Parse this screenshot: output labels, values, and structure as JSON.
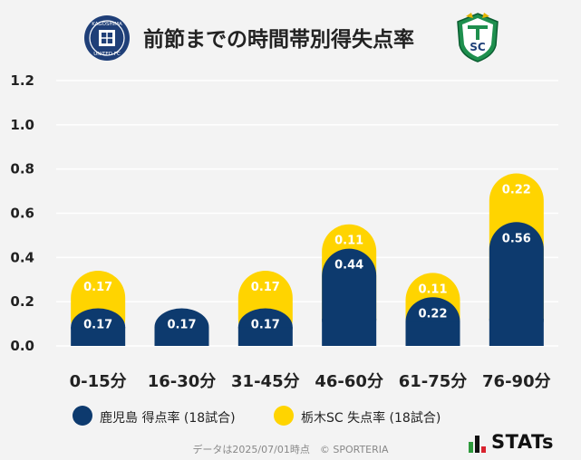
{
  "header": {
    "title": "前節までの時間帯別得失点率",
    "left_logo_text_top": "KAGOSHIMA",
    "left_logo_text_bottom": "UNITED FC",
    "right_logo_text": "SC"
  },
  "colors": {
    "series1": "#0d3a6e",
    "series2": "#ffd400",
    "background": "#f3f3f3"
  },
  "chart_data": {
    "type": "bar",
    "stacked": true,
    "categories": [
      "0-15分",
      "16-30分",
      "31-45分",
      "46-60分",
      "61-75分",
      "76-90分"
    ],
    "series": [
      {
        "name": "鹿児島 得点率 (18試合)",
        "values": [
          0.17,
          0.17,
          0.17,
          0.44,
          0.22,
          0.56
        ],
        "labels": [
          "0.17",
          "0.17",
          "0.17",
          "0.44",
          "0.22",
          "0.56"
        ]
      },
      {
        "name": "栃木SC 失点率 (18試合)",
        "values": [
          0.17,
          0,
          0.17,
          0.11,
          0.11,
          0.22
        ],
        "labels": [
          "0.17",
          "",
          "0.17",
          "0.11",
          "0.11",
          "0.22"
        ]
      }
    ],
    "yticks": [
      "0.0",
      "0.2",
      "0.4",
      "0.6",
      "0.8",
      "1.0",
      "1.2"
    ],
    "ylim": [
      0,
      1.2
    ],
    "grid": true,
    "legend_position": "bottom"
  },
  "footer": {
    "note": "データは2025/07/01時点　© SPORTERIA",
    "brand": "STATs"
  }
}
